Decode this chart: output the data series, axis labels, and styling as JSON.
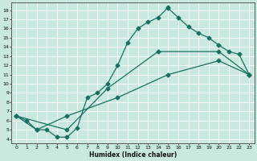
{
  "xlabel": "Humidex (Indice chaleur)",
  "xlim": [
    -0.5,
    23.5
  ],
  "ylim": [
    3.5,
    18.8
  ],
  "xticks": [
    0,
    1,
    2,
    3,
    4,
    5,
    6,
    7,
    8,
    9,
    10,
    11,
    12,
    13,
    14,
    15,
    16,
    17,
    18,
    19,
    20,
    21,
    22,
    23
  ],
  "yticks": [
    4,
    5,
    6,
    7,
    8,
    9,
    10,
    11,
    12,
    13,
    14,
    15,
    16,
    17,
    18
  ],
  "bg_color": "#c8e8e0",
  "line_color": "#1a7060",
  "grid_color": "#ffffff",
  "curve1_x": [
    0,
    1,
    2,
    3,
    4,
    5,
    6,
    7,
    8,
    9,
    10,
    11,
    12,
    13,
    14,
    15,
    15,
    16,
    17,
    18,
    19,
    20,
    21,
    22,
    23
  ],
  "curve1_y": [
    6.5,
    6.0,
    5.0,
    5.0,
    4.2,
    4.2,
    5.2,
    8.5,
    9.0,
    10.0,
    12.0,
    14.5,
    16.0,
    16.7,
    17.2,
    18.3,
    18.2,
    17.2,
    16.2,
    15.5,
    15.0,
    14.2,
    13.5,
    13.2,
    11.0
  ],
  "curve2_x": [
    0,
    5,
    9,
    14,
    20,
    23
  ],
  "curve2_y": [
    6.5,
    5.0,
    9.5,
    13.5,
    13.5,
    11.0
  ],
  "curve3_x": [
    0,
    2,
    5,
    10,
    15,
    20,
    23
  ],
  "curve3_y": [
    6.5,
    5.0,
    6.5,
    8.5,
    11.0,
    12.5,
    11.0
  ]
}
